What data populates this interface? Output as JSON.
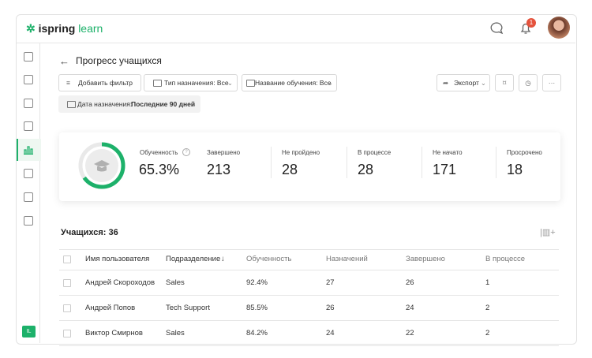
{
  "brand": {
    "name": "ispring",
    "product": "learn"
  },
  "header": {
    "notifications": "1"
  },
  "sidebar": {
    "user_initials": "IL"
  },
  "page": {
    "title": "Прогресс учащихся"
  },
  "filters": {
    "add": "Добавить фильтр",
    "type": "Тип назначения: Все",
    "course": "Название обучения: Все",
    "date_label": "Дата назначения:",
    "date_value": "Последние 90 дней",
    "export": "Экспорт"
  },
  "stats": {
    "progress": {
      "label": "Обученность",
      "value": 65.3,
      "value_label": "65.3%"
    },
    "items": [
      {
        "label": "Завершено",
        "value": "213"
      },
      {
        "label": "Не пройдено",
        "value": "28"
      },
      {
        "label": "В процессе",
        "value": "28"
      },
      {
        "label": "Не начато",
        "value": "171"
      },
      {
        "label": "Просрочено",
        "value": "18"
      }
    ]
  },
  "table": {
    "count": "Учащихся: 36",
    "columns": [
      "Имя пользователя",
      "Подразделение",
      "Обученность",
      "Назначений",
      "Завершено",
      "В процессе"
    ],
    "rows": [
      [
        "Андрей Скороходов",
        "Sales",
        "92.4%",
        "27",
        "26",
        "1"
      ],
      [
        "Андрей Попов",
        "Tech Support",
        "85.5%",
        "26",
        "24",
        "2"
      ],
      [
        "Виктор Смирнов",
        "Sales",
        "84.2%",
        "24",
        "22",
        "2"
      ]
    ]
  }
}
